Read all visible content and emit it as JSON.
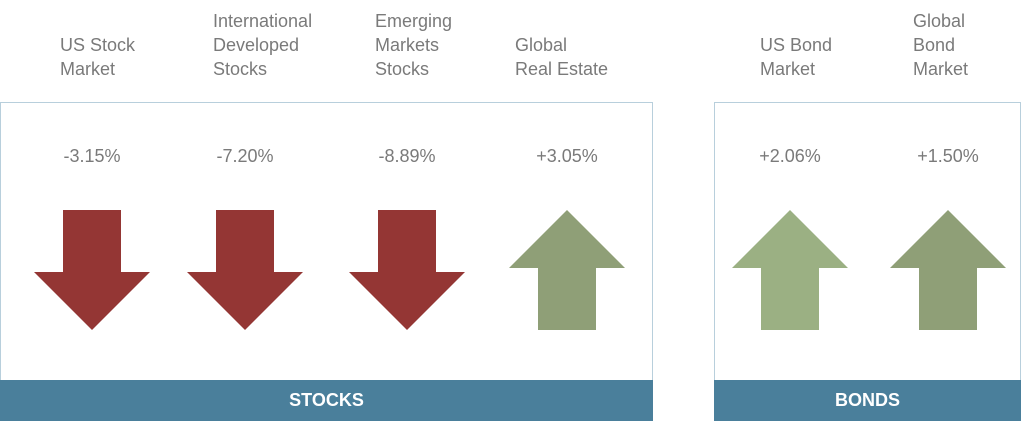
{
  "groups": [
    {
      "title": "STOCKS",
      "items": [
        {
          "label": [
            "US Stock",
            "Market"
          ],
          "value": "-3.15%"
        },
        {
          "label": [
            "International",
            "Developed",
            "Stocks"
          ],
          "value": "-7.20%"
        },
        {
          "label": [
            "Emerging",
            "Markets",
            "Stocks"
          ],
          "value": "-8.89%"
        },
        {
          "label": [
            "Global",
            "Real Estate"
          ],
          "value": "+3.05%"
        }
      ]
    },
    {
      "title": "BONDS",
      "items": [
        {
          "label": [
            "US Bond",
            "Market"
          ],
          "value": "+2.06%"
        },
        {
          "label": [
            "Global",
            "Bond",
            "Market"
          ],
          "value": "+1.50%"
        }
      ]
    }
  ]
}
